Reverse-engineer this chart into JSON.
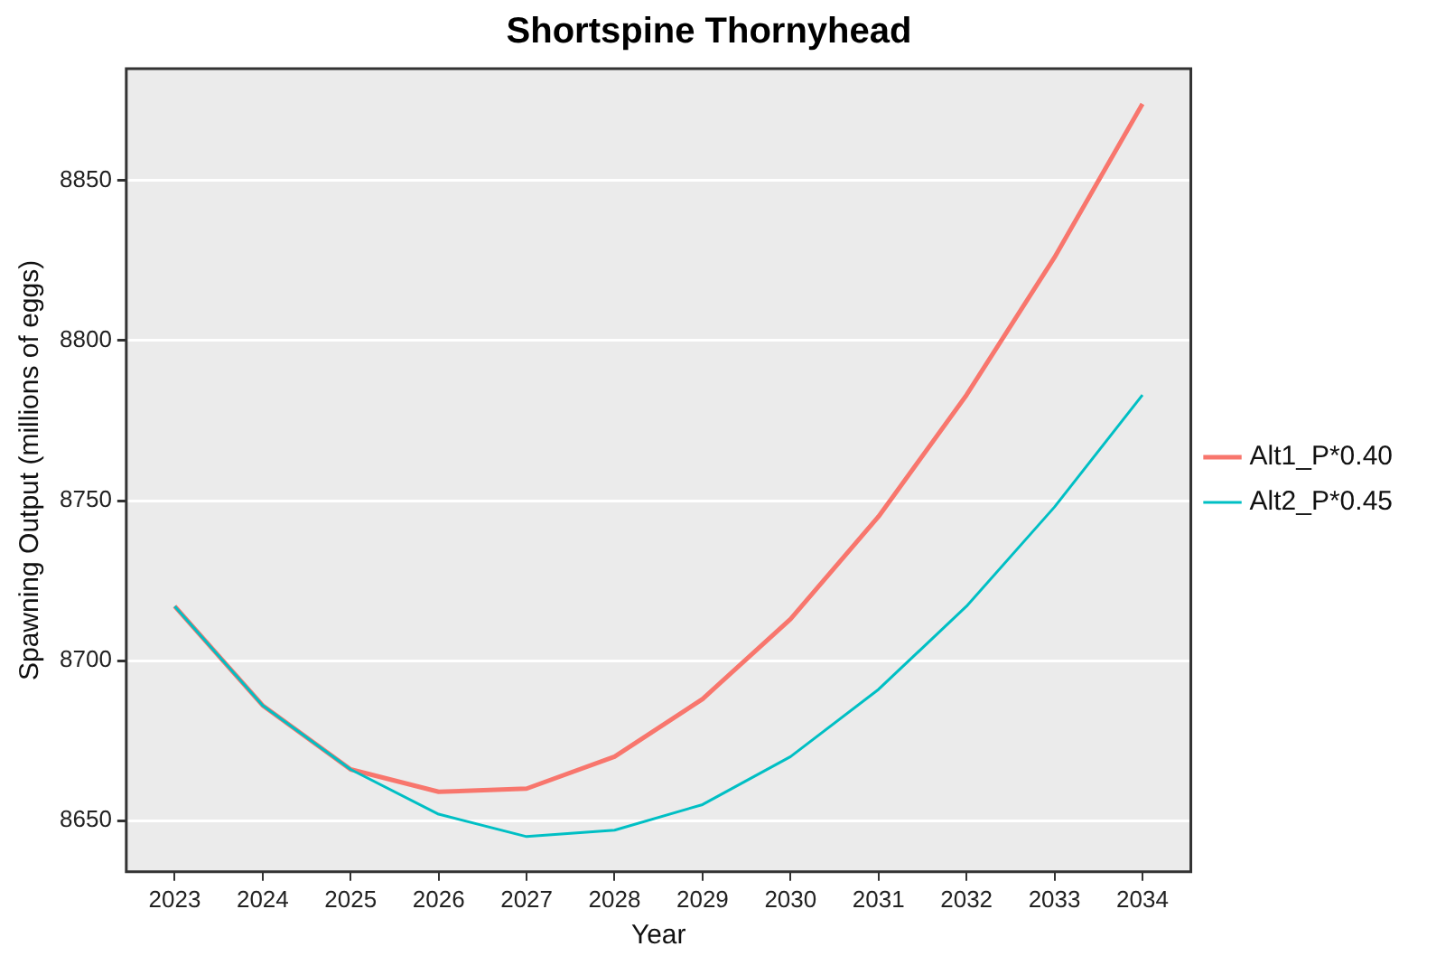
{
  "chart_data": {
    "type": "line",
    "title": "Shortspine Thornyhead",
    "xlabel": "Year",
    "ylabel": "Spawning Output (millions of eggs)",
    "x": [
      2023,
      2024,
      2025,
      2026,
      2027,
      2028,
      2029,
      2030,
      2031,
      2032,
      2033,
      2034
    ],
    "series": [
      {
        "name": "Alt1_P*0.40",
        "color": "#f8766d",
        "values": [
          8717,
          8686,
          8666,
          8659,
          8660,
          8670,
          8688,
          8713,
          8745,
          8783,
          8826,
          8874
        ]
      },
      {
        "name": "Alt2_P*0.45",
        "color": "#00bfc4",
        "values": [
          8717,
          8686,
          8666,
          8652,
          8645,
          8647,
          8655,
          8670,
          8691,
          8717,
          8748,
          8783
        ]
      }
    ],
    "xlim": [
      2022.45,
      2034.55
    ],
    "xticks": [
      2023,
      2024,
      2025,
      2026,
      2027,
      2028,
      2029,
      2030,
      2031,
      2032,
      2033,
      2034
    ],
    "ylim": [
      8634,
      8885
    ],
    "yticks": [
      8650,
      8700,
      8750,
      8800,
      8850
    ],
    "grid": "y",
    "legend": "right",
    "marker": "none",
    "line_style": "solid"
  }
}
